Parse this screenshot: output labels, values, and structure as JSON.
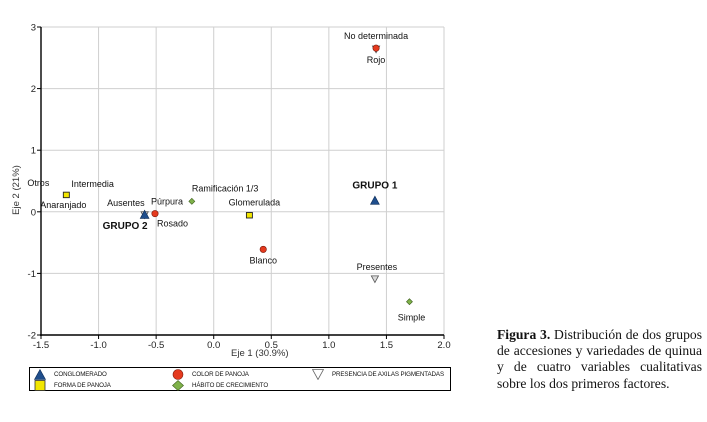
{
  "chart_data": {
    "type": "scatter",
    "title": "",
    "xlabel": "Eje 1 (30.9%)",
    "ylabel": "Eje 2 (21%)",
    "xlim": [
      -1.5,
      2.0
    ],
    "ylim": [
      -2,
      3
    ],
    "xticks": [
      "-1.5",
      "-1.0",
      "-0.5",
      "0.0",
      "0.5",
      "1.0",
      "1.5",
      "2.0"
    ],
    "xtick_values": [
      -1.5,
      -1.0,
      -0.5,
      0.0,
      0.5,
      1.0,
      1.5,
      2.0
    ],
    "yticks": [
      "-2",
      "-1",
      "0",
      "1",
      "2",
      "3"
    ],
    "ytick_values": [
      -2,
      -1,
      0,
      1,
      2,
      3
    ],
    "grid": true,
    "legend_placement": "bottom",
    "series": [
      {
        "name": "CONGLOMERADO",
        "marker": "triangle-up",
        "color": "#1f4e8c",
        "points": [
          {
            "x": 1.4,
            "y": 0.18,
            "labels": [
              {
                "text": "GRUPO 1",
                "pos": "above",
                "bold": true
              }
            ]
          },
          {
            "x": -0.6,
            "y": -0.05,
            "labels": [
              {
                "text": "GRUPO 2",
                "pos": "below-left",
                "bold": true
              }
            ]
          }
        ]
      },
      {
        "name": "FORMA DE PANOJA",
        "marker": "square",
        "color": "#f2e600",
        "points": [
          {
            "x": -1.28,
            "y": 0.27,
            "labels": [
              {
                "text": "Otros",
                "pos": "above-left"
              },
              {
                "text": "Intermedia",
                "pos": "above-right"
              },
              {
                "text": "Anaranjado",
                "pos": "below"
              }
            ]
          },
          {
            "x": 0.31,
            "y": -0.06,
            "labels": [
              {
                "text": "Glomerulada",
                "pos": "above"
              }
            ]
          }
        ]
      },
      {
        "name": "COLOR DE PANOJA",
        "marker": "circle",
        "color": "#e53a1e",
        "points": [
          {
            "x": -0.51,
            "y": -0.03,
            "labels": [
              {
                "text": "Púrpura",
                "pos": "above-right"
              },
              {
                "text": "Rosado",
                "pos": "below-right"
              }
            ]
          },
          {
            "x": 0.43,
            "y": -0.61,
            "labels": [
              {
                "text": "Blanco",
                "pos": "below"
              }
            ]
          },
          {
            "x": 1.41,
            "y": 2.64,
            "labels": [
              {
                "text": "Rojo",
                "pos": "below"
              }
            ]
          }
        ]
      },
      {
        "name": "HÁBITO DE CRECIMIENTO",
        "marker": "diamond",
        "color": "#7fb24a",
        "points": [
          {
            "x": -0.19,
            "y": 0.17,
            "labels": [
              {
                "text": "Ramificación 1/3",
                "pos": "above-right"
              }
            ]
          },
          {
            "x": 1.7,
            "y": -1.46,
            "labels": [
              {
                "text": "Simple",
                "pos": "below"
              }
            ]
          }
        ]
      },
      {
        "name": "PRESENCIA DE AXILAS PIGMENTADAS",
        "marker": "triangle-down",
        "color": "#d9d9d9",
        "points": [
          {
            "x": -0.6,
            "y": -0.05,
            "labels": [
              {
                "text": "Ausentes",
                "pos": "above-left"
              }
            ]
          },
          {
            "x": 1.4,
            "y": -1.09,
            "labels": [
              {
                "text": "Presentes",
                "pos": "above"
              }
            ]
          },
          {
            "x": 1.41,
            "y": 2.64,
            "labels": [
              {
                "text": "No determinada",
                "pos": "above"
              }
            ]
          }
        ]
      }
    ]
  },
  "legend": {
    "items": [
      {
        "label": "CONGLOMERADO",
        "marker": "triangle-up",
        "color": "#1f4e8c"
      },
      {
        "label": "FORMA DE PANOJA",
        "marker": "square",
        "color": "#f2e600"
      },
      {
        "label": "COLOR DE PANOJA",
        "marker": "circle",
        "color": "#e53a1e"
      },
      {
        "label": "HÁBITO DE CRECIMIENTO",
        "marker": "diamond",
        "color": "#7fb24a"
      },
      {
        "label": "PRESENCIA DE AXILAS PIGMENTADAS",
        "marker": "triangle-down",
        "color": "#d9d9d9"
      }
    ]
  },
  "caption": {
    "label": "Figura 3.",
    "text": " Distribución de dos grupos de accesiones y variedades de quinua y de cuatro variables cualitativas sobre los dos primeros factores."
  }
}
